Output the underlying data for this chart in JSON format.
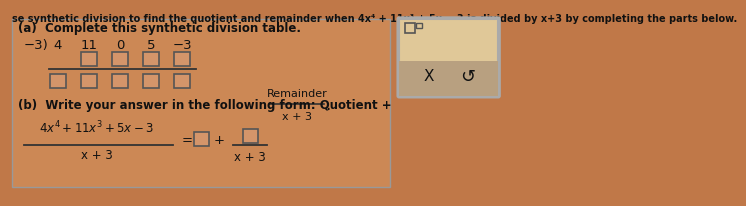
{
  "title_text": "se synthetic division to find the quotient and remainder when 4x⁴ + 11x³ + 5x − 3 is divided by x+3 by completing the parts below.",
  "bg_color": "#c07848",
  "panel_bg": "#d4956a",
  "panel_border": "#888888",
  "right_box_top_bg": "#e8d0b0",
  "right_box_bot_bg": "#b89878",
  "part_a_label": "(a)  Complete this synthetic division table.",
  "synth_divisor": "−3)",
  "synth_row1": [
    "4",
    "11",
    "0",
    "5",
    "−3"
  ],
  "part_b_label": "(b)  Write your answer in the following form: Quotient +",
  "part_b_frac_num": "Remainder",
  "part_b_frac_den": "x + 3",
  "equation_num_tex": "$4x^4 + 11x^3 + 5x - 3$",
  "equation_den": "x + 3",
  "eq_frac_den": "x + 3",
  "text_color": "#111111",
  "input_box_face": "#d4956a",
  "input_box_edge": "#555555"
}
